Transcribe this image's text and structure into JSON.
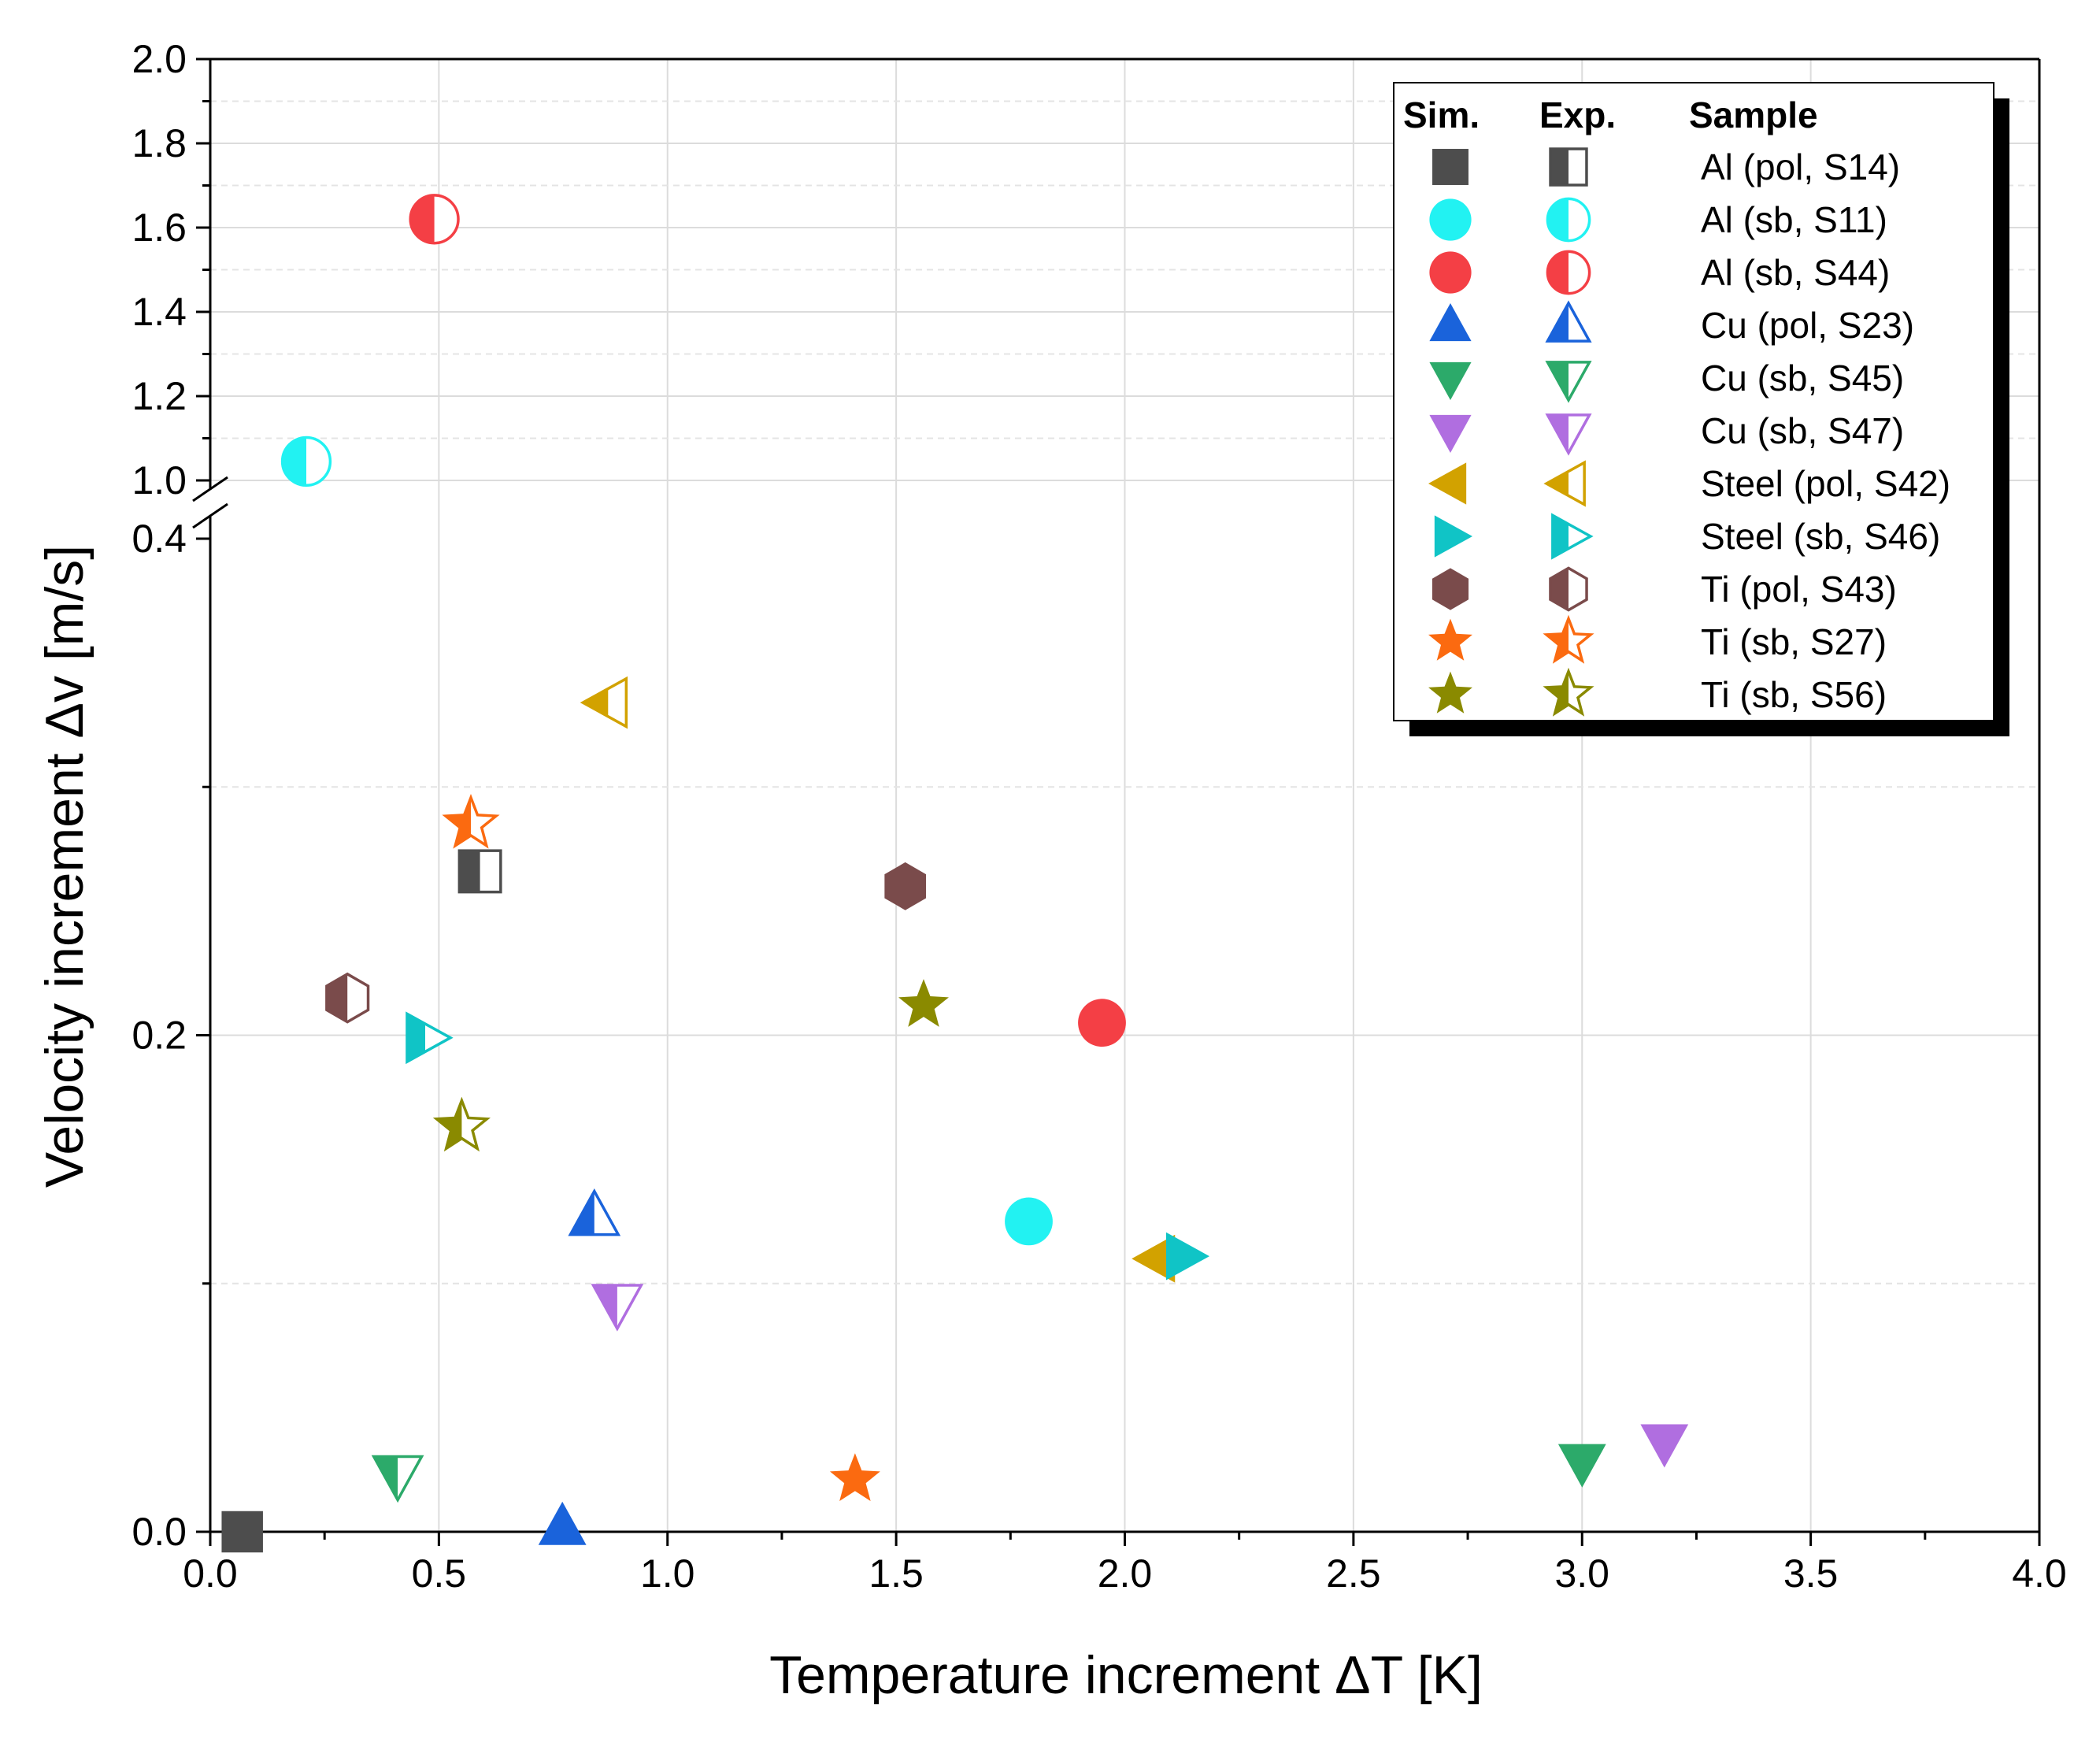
{
  "chart_data": {
    "type": "scatter",
    "xlabel": "Temperature increment ΔT [K]",
    "ylabel": "Velocity increment Δv [m/s]",
    "xlim": [
      0,
      4.0
    ],
    "y_axis_break": {
      "lower_range": [
        0,
        0.4
      ],
      "upper_range": [
        1.0,
        2.0
      ],
      "lower_ticks": [
        "0.0",
        "0.2",
        "0.4"
      ],
      "upper_ticks": [
        "1.0",
        "1.2",
        "1.4",
        "1.6",
        "1.8",
        "2.0"
      ]
    },
    "x_ticks": [
      "0.0",
      "0.5",
      "1.0",
      "1.5",
      "2.0",
      "2.5",
      "3.0",
      "3.5",
      "4.0"
    ],
    "grid": true,
    "legend": {
      "placement": "top-right",
      "headers": [
        "Sim.",
        "Exp.",
        "Sample"
      ]
    },
    "series": [
      {
        "name": "Al (pol, S14)",
        "color": "#4d4d4d",
        "marker": "square",
        "sim": [
          0.07,
          0.0
        ],
        "exp": [
          0.59,
          0.266
        ]
      },
      {
        "name": "Al (sb, S11)",
        "color": "#22f2f2",
        "marker": "circle",
        "sim": [
          1.79,
          0.125
        ],
        "exp": [
          0.21,
          1.045
        ]
      },
      {
        "name": "Al (sb, S44)",
        "color": "#f43f45",
        "marker": "circle",
        "sim": [
          1.95,
          0.205
        ],
        "exp": [
          0.49,
          1.62
        ]
      },
      {
        "name": "Cu (pol, S23)",
        "color": "#1a63db",
        "marker": "triangle-up",
        "sim": [
          0.77,
          0.002
        ],
        "exp": [
          0.84,
          0.127
        ]
      },
      {
        "name": "Cu (sb, S45)",
        "color": "#2caa6a",
        "marker": "triangle-down",
        "sim": [
          3.0,
          0.028
        ],
        "exp": [
          0.41,
          0.023
        ]
      },
      {
        "name": "Cu (sb, S47)",
        "color": "#b06ee0",
        "marker": "triangle-down",
        "sim": [
          3.18,
          0.036
        ],
        "exp": [
          0.89,
          0.092
        ]
      },
      {
        "name": "Steel (pol, S42)",
        "color": "#d2a200",
        "marker": "triangle-left",
        "sim": [
          2.07,
          0.11
        ],
        "exp": [
          0.87,
          0.334
        ]
      },
      {
        "name": "Steel (sb, S46)",
        "color": "#10c4c6",
        "marker": "triangle-right",
        "sim": [
          2.13,
          0.111
        ],
        "exp": [
          0.47,
          0.199
        ]
      },
      {
        "name": "Ti (pol, S43)",
        "color": "#7a4b4b",
        "marker": "hexagon",
        "sim": [
          1.52,
          0.26
        ],
        "exp": [
          0.3,
          0.215
        ]
      },
      {
        "name": "Ti (sb, S27)",
        "color": "#fb6a10",
        "marker": "star",
        "sim": [
          1.41,
          0.021
        ],
        "exp": [
          0.57,
          0.285
        ]
      },
      {
        "name": "Ti (sb, S56)",
        "color": "#8a8a00",
        "marker": "star",
        "sim": [
          1.56,
          0.212
        ],
        "exp": [
          0.55,
          0.163
        ]
      }
    ]
  }
}
